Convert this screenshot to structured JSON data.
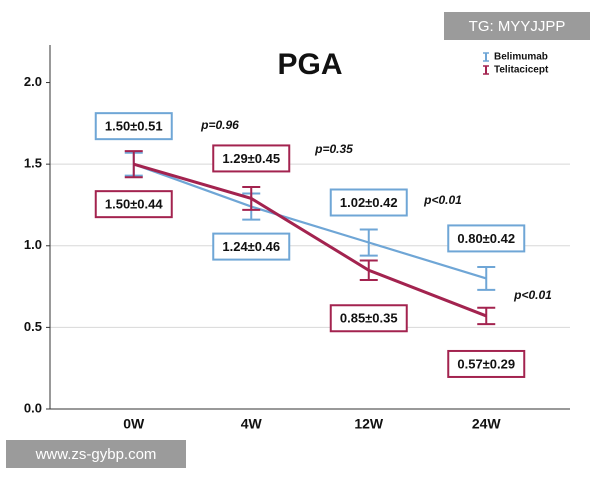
{
  "chart_data": {
    "type": "line",
    "title": "PGA",
    "categories": [
      "0W",
      "4W",
      "12W",
      "24W"
    ],
    "series": [
      {
        "name": "Belimumab",
        "color": "#6fa6d6",
        "values": [
          1.5,
          1.24,
          1.02,
          0.8
        ],
        "errors": [
          0.07,
          0.08,
          0.08,
          0.07
        ],
        "value_labels": [
          "1.50±0.51",
          "1.24±0.46",
          "1.02±0.42",
          "0.80±0.42"
        ]
      },
      {
        "name": "Telitacicept",
        "color": "#a3234f",
        "values": [
          1.5,
          1.29,
          0.85,
          0.57
        ],
        "errors": [
          0.08,
          0.07,
          0.06,
          0.05
        ],
        "value_labels": [
          "1.50±0.44",
          "1.29±0.45",
          "0.85±0.35",
          "0.57±0.29"
        ]
      }
    ],
    "annotations": [
      "p=0.96",
      "p=0.35",
      "p<0.01",
      "p<0.01"
    ],
    "ylim": [
      0,
      2.23
    ],
    "yticks": [
      {
        "value": 0,
        "label": "0.0"
      },
      0.5,
      {
        "value": 1,
        "label": "1.0"
      },
      1.5,
      {
        "value": 2,
        "label": "2.0"
      }
    ],
    "grid": true,
    "legend": "top-right"
  },
  "watermarks": [
    "TG: MYYJJPP",
    "www.zs-gybp.com"
  ]
}
